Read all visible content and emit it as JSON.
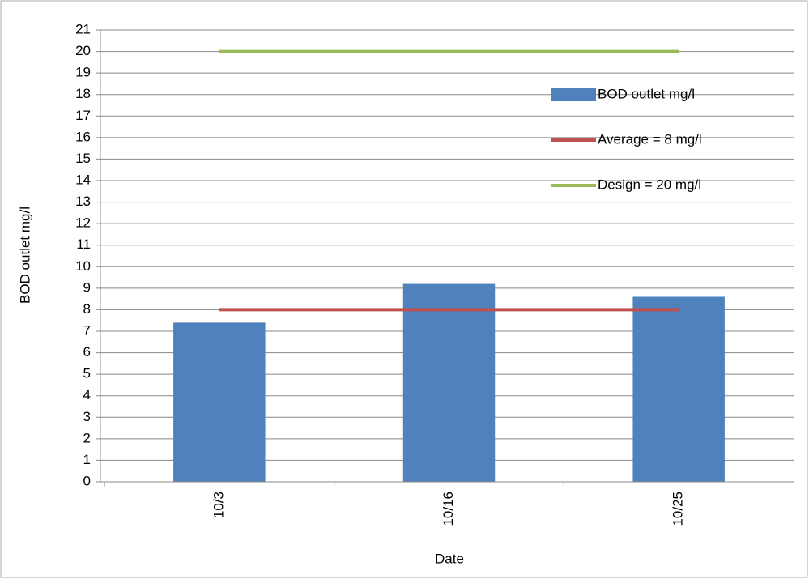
{
  "chart_data": {
    "type": "bar",
    "x_label": "Date",
    "y_label": "BOD outlet mg/l",
    "categories": [
      "10/3",
      "10/16",
      "10/25"
    ],
    "series": [
      {
        "name": "BOD outlet mg/l",
        "type": "bar",
        "color": "#4f81bd",
        "values": [
          7.4,
          9.2,
          8.6
        ]
      },
      {
        "name": "Average = 8 mg/l",
        "type": "line",
        "color": "#c0504d",
        "values": [
          8,
          8,
          8
        ]
      },
      {
        "name": "Design = 20 mg/l",
        "type": "line",
        "color": "#9bbb59",
        "values": [
          20,
          20,
          20
        ]
      }
    ],
    "ylim": [
      0,
      21
    ],
    "yticks": [
      0,
      1,
      2,
      3,
      4,
      5,
      6,
      7,
      8,
      9,
      10,
      11,
      12,
      13,
      14,
      15,
      16,
      17,
      18,
      19,
      20,
      21
    ],
    "grid": true,
    "legend": "right"
  }
}
